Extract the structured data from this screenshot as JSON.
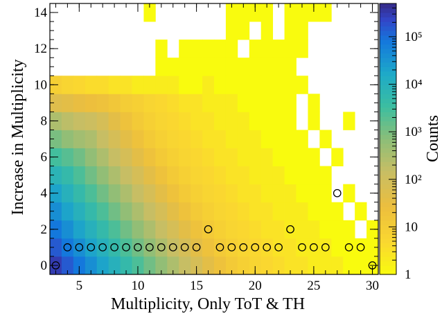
{
  "chart_data": {
    "type": "heatmap",
    "title": "",
    "xlabel": "Multiplicity, Only ToT & TH",
    "ylabel": "Increase in Multiplicity",
    "colorbar_label": "Counts",
    "xlim": [
      2.5,
      30.5
    ],
    "ylim": [
      -0.5,
      14.5
    ],
    "x_ticks": [
      5,
      10,
      15,
      20,
      25,
      30
    ],
    "y_ticks": [
      0,
      2,
      4,
      6,
      8,
      10,
      12,
      14
    ],
    "x_tick_labels": [
      "5",
      "10",
      "15",
      "20",
      "25",
      "30"
    ],
    "y_tick_labels": [
      "0",
      "2",
      "4",
      "6",
      "8",
      "10",
      "12",
      "14"
    ],
    "z_scale": "log",
    "z_range": [
      1,
      500000
    ],
    "colorbar_ticks": [
      1,
      10,
      100,
      1000,
      10000,
      100000
    ],
    "colorbar_tick_labels": [
      "1",
      "10",
      "10²",
      "10³",
      "10⁴",
      "10⁵"
    ],
    "palette": "parula",
    "x_start": 3,
    "y_start": 0,
    "counts": [
      [
        300000,
        150000,
        80000,
        40000,
        20000,
        10000,
        5000,
        2500,
        1200,
        600,
        300,
        150,
        80,
        40,
        20,
        12,
        8,
        6,
        5,
        4,
        3,
        3,
        2,
        2,
        2,
        1,
        1,
        1
      ],
      [
        150000,
        80000,
        40000,
        20000,
        10000,
        5000,
        2500,
        1200,
        600,
        300,
        150,
        80,
        40,
        20,
        12,
        8,
        6,
        5,
        4,
        3,
        3,
        2,
        2,
        2,
        1,
        1,
        1,
        1
      ],
      [
        80000,
        40000,
        20000,
        10000,
        5000,
        2500,
        1200,
        600,
        300,
        150,
        80,
        40,
        20,
        12,
        8,
        6,
        5,
        4,
        3,
        3,
        2,
        2,
        2,
        1,
        1,
        1,
        0,
        1
      ],
      [
        40000,
        20000,
        10000,
        5000,
        2500,
        1200,
        600,
        300,
        150,
        80,
        40,
        20,
        12,
        8,
        6,
        5,
        4,
        3,
        3,
        2,
        2,
        2,
        1,
        1,
        1,
        0,
        1,
        0
      ],
      [
        20000,
        10000,
        5000,
        2500,
        1200,
        600,
        300,
        150,
        80,
        40,
        20,
        12,
        8,
        6,
        5,
        4,
        3,
        3,
        2,
        2,
        2,
        1,
        1,
        1,
        0,
        1,
        0,
        0
      ],
      [
        8000,
        5000,
        2500,
        1200,
        600,
        300,
        150,
        80,
        40,
        20,
        12,
        8,
        6,
        5,
        4,
        3,
        3,
        2,
        2,
        2,
        1,
        1,
        1,
        1,
        0,
        0,
        0,
        0
      ],
      [
        3000,
        2000,
        1200,
        600,
        300,
        150,
        80,
        40,
        20,
        12,
        8,
        6,
        5,
        4,
        3,
        3,
        2,
        2,
        2,
        1,
        1,
        1,
        1,
        0,
        1,
        0,
        0,
        0
      ],
      [
        1000,
        600,
        400,
        300,
        150,
        80,
        40,
        20,
        12,
        8,
        6,
        5,
        4,
        3,
        3,
        2,
        2,
        2,
        1,
        1,
        1,
        1,
        0,
        1,
        0,
        0,
        0,
        0
      ],
      [
        300,
        200,
        150,
        120,
        80,
        40,
        20,
        12,
        8,
        6,
        5,
        4,
        3,
        3,
        2,
        2,
        2,
        1,
        1,
        1,
        1,
        0,
        1,
        0,
        0,
        1,
        0,
        0
      ],
      [
        50,
        40,
        30,
        25,
        20,
        15,
        10,
        8,
        6,
        5,
        4,
        3,
        3,
        2,
        2,
        2,
        1,
        1,
        1,
        1,
        1,
        0,
        1,
        0,
        0,
        0,
        0,
        0
      ],
      [
        8,
        6,
        5,
        4,
        4,
        3,
        3,
        2,
        2,
        2,
        2,
        1,
        1,
        2,
        1,
        1,
        1,
        1,
        1,
        1,
        1,
        1,
        0,
        0,
        0,
        0,
        0,
        0
      ],
      [
        0,
        0,
        0,
        0,
        0,
        0,
        0,
        0,
        0,
        1,
        1,
        1,
        1,
        1,
        1,
        1,
        1,
        1,
        1,
        1,
        1,
        0,
        0,
        0,
        0,
        0,
        0,
        0
      ],
      [
        0,
        0,
        0,
        0,
        0,
        0,
        0,
        0,
        0,
        1,
        0,
        1,
        1,
        1,
        1,
        1,
        0,
        1,
        1,
        1,
        1,
        1,
        0,
        0,
        0,
        0,
        0,
        0
      ],
      [
        0,
        0,
        0,
        0,
        0,
        0,
        0,
        0,
        0,
        0,
        0,
        0,
        0,
        0,
        0,
        1,
        1,
        0,
        1,
        0,
        1,
        1,
        0,
        0,
        0,
        0,
        0,
        0
      ],
      [
        0,
        0,
        0,
        0,
        0,
        0,
        0,
        0,
        1,
        0,
        0,
        0,
        0,
        0,
        0,
        1,
        1,
        1,
        1,
        0,
        1,
        1,
        1,
        1,
        0,
        0,
        0,
        0
      ]
    ],
    "markers": [
      {
        "x": 3,
        "y": 0
      },
      {
        "x": 30,
        "y": 0
      },
      {
        "x": 4,
        "y": 1
      },
      {
        "x": 5,
        "y": 1
      },
      {
        "x": 6,
        "y": 1
      },
      {
        "x": 7,
        "y": 1
      },
      {
        "x": 8,
        "y": 1
      },
      {
        "x": 9,
        "y": 1
      },
      {
        "x": 10,
        "y": 1
      },
      {
        "x": 11,
        "y": 1
      },
      {
        "x": 12,
        "y": 1
      },
      {
        "x": 13,
        "y": 1
      },
      {
        "x": 14,
        "y": 1
      },
      {
        "x": 15,
        "y": 1
      },
      {
        "x": 17,
        "y": 1
      },
      {
        "x": 18,
        "y": 1
      },
      {
        "x": 19,
        "y": 1
      },
      {
        "x": 20,
        "y": 1
      },
      {
        "x": 21,
        "y": 1
      },
      {
        "x": 22,
        "y": 1
      },
      {
        "x": 24,
        "y": 1
      },
      {
        "x": 25,
        "y": 1
      },
      {
        "x": 26,
        "y": 1
      },
      {
        "x": 28,
        "y": 1
      },
      {
        "x": 29,
        "y": 1
      },
      {
        "x": 16,
        "y": 2
      },
      {
        "x": 23,
        "y": 2
      },
      {
        "x": 27,
        "y": 4
      }
    ]
  }
}
